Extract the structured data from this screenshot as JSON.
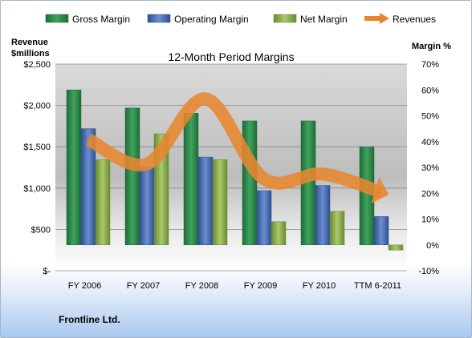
{
  "chart_data": {
    "type": "bar",
    "title": "12-Month Period Margins",
    "left_axis": {
      "title_line1": "Revenue",
      "title_line2": "$millions",
      "range": [
        0,
        2500
      ],
      "ticks": [
        0,
        500,
        1000,
        1500,
        2000,
        2500
      ],
      "tick_labels": [
        "$-",
        "$500",
        "$1,000",
        "$1,500",
        "$2,000",
        "$2,500"
      ]
    },
    "right_axis": {
      "title": "Margin %",
      "range": [
        -10,
        70
      ],
      "ticks": [
        -10,
        0,
        10,
        20,
        30,
        40,
        50,
        60,
        70
      ],
      "tick_labels": [
        "-10%",
        "0%",
        "10%",
        "20%",
        "30%",
        "40%",
        "50%",
        "60%",
        "70%"
      ]
    },
    "categories": [
      "FY 2006",
      "FY 2007",
      "FY 2008",
      "FY 2009",
      "FY 2010",
      "TTM 6-2011"
    ],
    "series": [
      {
        "name": "Gross Margin",
        "axis": "right",
        "color": "#2e8b4a",
        "values": [
          60,
          53,
          51,
          48,
          48,
          38
        ]
      },
      {
        "name": "Operating Margin",
        "axis": "right",
        "color": "#4a6fb5",
        "values": [
          45,
          30,
          34,
          21,
          23,
          11
        ]
      },
      {
        "name": "Net Margin",
        "axis": "right",
        "color": "#8fb04e",
        "values": [
          33,
          43,
          33,
          9,
          13,
          -2
        ]
      },
      {
        "name": "Revenues",
        "axis": "left",
        "type": "line",
        "color": "#e8862f",
        "values": [
          1590,
          1290,
          2080,
          1110,
          1170,
          950
        ]
      }
    ],
    "legend_position": "top",
    "grid": true
  },
  "footer": {
    "company": "Frontline Ltd."
  }
}
